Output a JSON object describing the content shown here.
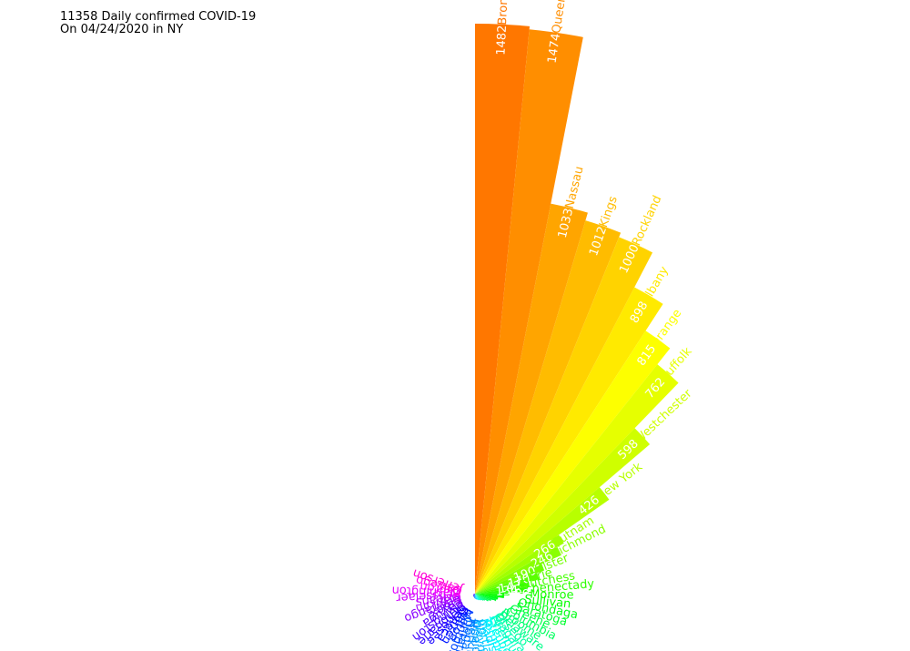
{
  "title": {
    "line1": "11358 Daily confirmed COVID-19",
    "line2": "On 04/24/2020 in NY"
  },
  "chart_data": {
    "type": "polar-bar",
    "title": "11358 Daily confirmed COVID-19 On 04/24/2020 in NY",
    "start_angle": "90 deg (top), clockwise",
    "sector_width_deg": 5.5,
    "colormap": "hsv",
    "series": [
      {
        "categories": [
          "Bronx",
          "Queens",
          "Nassau",
          "Kings",
          "Rockland",
          "Albany",
          "Orange",
          "Suffolk",
          "Westchester",
          "New York",
          "Putnam",
          "Richmond",
          "Ulster",
          "Erie",
          "Dutchess",
          "Schenectady",
          "Monroe",
          "Sullivan",
          "Onondaga",
          "Saratoga",
          "Greene",
          "Columbia",
          "Broome",
          "Delaware",
          "Otsego",
          "Niagara",
          "Chemung",
          "Steuben",
          "Tompkins",
          "Madison",
          "Cortland",
          "Wayne",
          "Oneida",
          "Herkimer",
          "Tioga",
          "Ontario",
          "Montgomery",
          "Fulton",
          "Warren",
          "Seneca",
          "Genesee",
          "Schoharie",
          "Livingston",
          "Cayuga",
          "Essex",
          "Chenango",
          "Franklin",
          "Orleans",
          "Rensselaer",
          "Washington",
          "Clinton",
          "Oswego",
          "Jefferson"
        ],
        "values": [
          1482,
          1474,
          1033,
          1012,
          1000,
          898,
          815,
          762,
          598,
          426,
          266,
          246,
          190,
          170,
          143,
          134,
          89,
          76,
          61,
          58,
          45,
          39,
          31,
          28,
          24,
          22,
          20,
          19,
          17,
          16,
          15,
          14,
          13,
          12,
          11,
          10,
          9,
          8,
          8,
          7,
          7,
          6,
          6,
          5,
          5,
          4,
          4,
          3,
          3,
          2,
          2,
          1,
          1
        ]
      }
    ]
  }
}
